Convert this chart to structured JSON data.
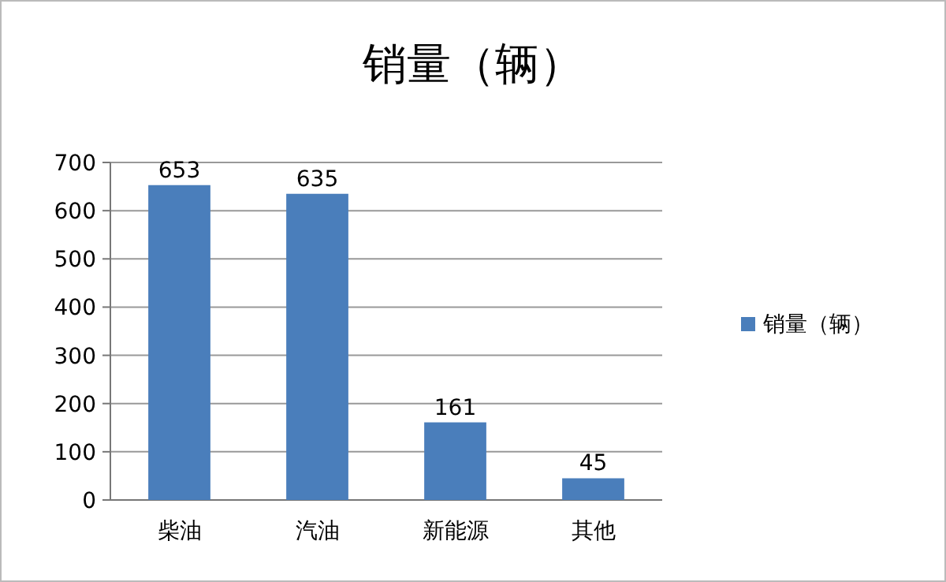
{
  "chart_data": {
    "type": "bar",
    "title": "销量（辆）",
    "categories": [
      "柴油",
      "汽油",
      "新能源",
      "其他"
    ],
    "series": [
      {
        "name": "销量（辆）",
        "color": "#4a7ebb",
        "values": [
          653,
          635,
          161,
          45
        ]
      }
    ],
    "ylim": [
      0,
      700
    ],
    "yticks": [
      0,
      100,
      200,
      300,
      400,
      500,
      600,
      700
    ],
    "grid": "y",
    "legend": "right",
    "data_labels": true
  }
}
